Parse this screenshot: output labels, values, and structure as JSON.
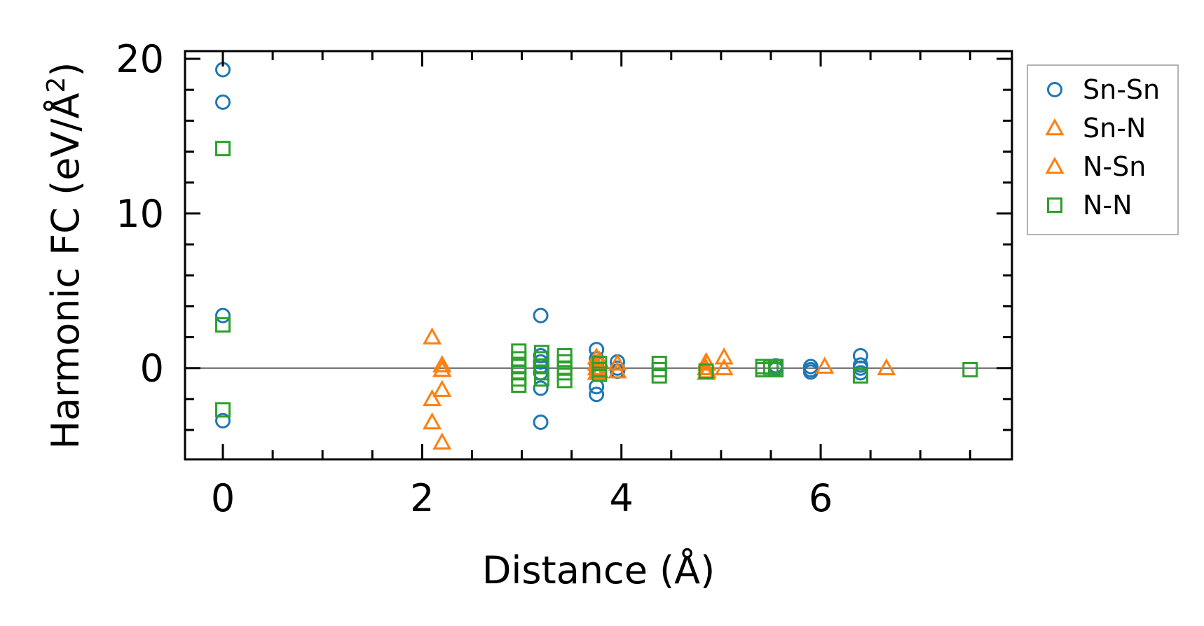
{
  "chart_data": {
    "type": "scatter",
    "title": "",
    "xlabel": "Distance (Å)",
    "ylabel_main": "Harmonic FC (eV/Å",
    "ylabel_sup": "2",
    "ylabel_close": ")",
    "xlim": [
      -0.38,
      7.92
    ],
    "ylim": [
      -5.9,
      20.5
    ],
    "xticks": [
      0,
      2,
      4,
      6
    ],
    "xtick_labels": [
      "0",
      "2",
      "4",
      "6"
    ],
    "yticks": [
      0,
      10,
      20
    ],
    "ytick_labels": [
      "0",
      "10",
      "20"
    ],
    "x_minor_step": 0.5,
    "y_minor_step": 2,
    "zero_line": true,
    "grid": false,
    "legend_position": "outside-right",
    "series": [
      {
        "name": "Sn-Sn",
        "marker": "circle",
        "color": "#1f77b4",
        "points": [
          [
            0,
            19.3
          ],
          [
            0,
            17.2
          ],
          [
            0,
            3.4
          ],
          [
            0,
            -3.4
          ],
          [
            3.19,
            3.4
          ],
          [
            3.19,
            0.8
          ],
          [
            3.19,
            0.4
          ],
          [
            3.19,
            0.1
          ],
          [
            3.19,
            -0.3
          ],
          [
            3.19,
            -1.3
          ],
          [
            3.19,
            -3.5
          ],
          [
            3.75,
            1.2
          ],
          [
            3.75,
            0.6
          ],
          [
            3.75,
            0.3
          ],
          [
            3.75,
            0.0
          ],
          [
            3.75,
            -0.3
          ],
          [
            3.75,
            -1.2
          ],
          [
            3.75,
            -1.7
          ],
          [
            3.96,
            0.4
          ],
          [
            3.96,
            0.0
          ],
          [
            3.96,
            -0.2
          ],
          [
            5.55,
            0.15
          ],
          [
            5.55,
            -0.05
          ],
          [
            5.9,
            0.1
          ],
          [
            5.9,
            -0.1
          ],
          [
            5.9,
            -0.25
          ],
          [
            6.4,
            0.8
          ],
          [
            6.4,
            0.2
          ],
          [
            6.4,
            0.0
          ],
          [
            6.4,
            -0.3
          ]
        ]
      },
      {
        "name": "Sn-N",
        "marker": "triangle",
        "color": "#ff7f0e",
        "points": [
          [
            2.1,
            2.0
          ],
          [
            2.1,
            -2.0
          ],
          [
            2.1,
            -3.5
          ],
          [
            2.2,
            0.2
          ],
          [
            2.2,
            -0.1
          ],
          [
            2.2,
            -1.4
          ],
          [
            2.2,
            -4.8
          ],
          [
            3.75,
            0.7
          ],
          [
            3.75,
            0.3
          ],
          [
            3.75,
            0.0
          ],
          [
            3.75,
            -0.3
          ],
          [
            3.96,
            0.3
          ],
          [
            3.96,
            -0.2
          ],
          [
            4.85,
            0.4
          ],
          [
            4.85,
            0.0
          ],
          [
            4.85,
            -0.3
          ],
          [
            5.03,
            0.7
          ],
          [
            5.03,
            0.0
          ],
          [
            6.04,
            0.1
          ],
          [
            6.66,
            0.0
          ]
        ]
      },
      {
        "name": "N-Sn",
        "marker": "triangle",
        "color": "#ff7f0e",
        "points": [
          [
            2.2,
            0.2
          ],
          [
            2.2,
            -0.1
          ],
          [
            3.78,
            0.5
          ],
          [
            3.78,
            -0.2
          ],
          [
            4.86,
            0.3
          ],
          [
            4.86,
            -0.2
          ]
        ]
      },
      {
        "name": "N-N",
        "marker": "square",
        "color": "#2ca02c",
        "points": [
          [
            0,
            14.2
          ],
          [
            0,
            2.8
          ],
          [
            0,
            -2.7
          ],
          [
            2.97,
            1.1
          ],
          [
            2.97,
            0.6
          ],
          [
            2.97,
            0.1
          ],
          [
            2.97,
            -0.3
          ],
          [
            2.97,
            -0.7
          ],
          [
            2.97,
            -1.1
          ],
          [
            3.2,
            1.0
          ],
          [
            3.2,
            0.6
          ],
          [
            3.2,
            0.1
          ],
          [
            3.2,
            -0.3
          ],
          [
            3.2,
            -0.7
          ],
          [
            3.43,
            0.8
          ],
          [
            3.43,
            0.4
          ],
          [
            3.43,
            0.0
          ],
          [
            3.43,
            -0.3
          ],
          [
            3.43,
            -0.8
          ],
          [
            3.78,
            0.3
          ],
          [
            3.78,
            -0.1
          ],
          [
            3.78,
            -0.4
          ],
          [
            4.38,
            0.3
          ],
          [
            4.38,
            -0.1
          ],
          [
            4.38,
            -0.5
          ],
          [
            4.85,
            -0.2
          ],
          [
            5.42,
            0.1
          ],
          [
            5.42,
            -0.1
          ],
          [
            5.5,
            0.05
          ],
          [
            5.55,
            0.1
          ],
          [
            5.55,
            -0.1
          ],
          [
            6.4,
            -0.5
          ],
          [
            7.5,
            -0.1
          ]
        ]
      }
    ]
  }
}
